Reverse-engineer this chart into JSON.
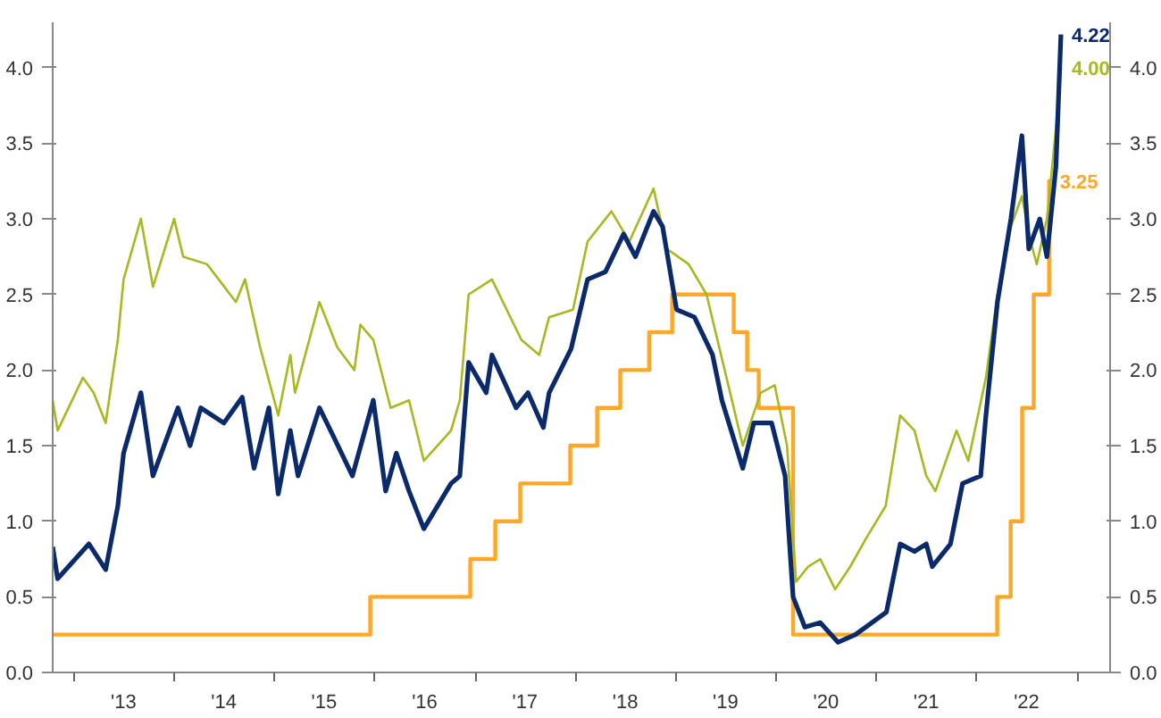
{
  "chart_data": {
    "type": "line",
    "xlim": [
      "2012-10-16",
      "2023-05-01"
    ],
    "xticks": [
      {
        "value": "2013-01-01",
        "label": null
      },
      {
        "value": "2013-07-01",
        "label": "'13"
      },
      {
        "value": "2014-01-01",
        "label": null
      },
      {
        "value": "2014-07-01",
        "label": "'14"
      },
      {
        "value": "2015-01-01",
        "label": null
      },
      {
        "value": "2015-07-01",
        "label": "'15"
      },
      {
        "value": "2016-01-01",
        "label": null
      },
      {
        "value": "2016-07-01",
        "label": "'16"
      },
      {
        "value": "2017-01-01",
        "label": null
      },
      {
        "value": "2017-07-01",
        "label": "'17"
      },
      {
        "value": "2018-01-01",
        "label": null
      },
      {
        "value": "2018-07-01",
        "label": "'18"
      },
      {
        "value": "2019-01-01",
        "label": null
      },
      {
        "value": "2019-07-01",
        "label": "'19"
      },
      {
        "value": "2020-01-01",
        "label": null
      },
      {
        "value": "2020-07-01",
        "label": "'20"
      },
      {
        "value": "2021-01-01",
        "label": null
      },
      {
        "value": "2021-07-01",
        "label": "'21"
      },
      {
        "value": "2022-01-01",
        "label": null
      },
      {
        "value": "2022-07-01",
        "label": "'22"
      },
      {
        "value": "2023-01-01",
        "label": null
      }
    ],
    "ylim": [
      0,
      4.3
    ],
    "yticks": [
      {
        "value": 0,
        "label": "0.0"
      },
      {
        "value": 0.5,
        "label": "0.5"
      },
      {
        "value": 1,
        "label": "1.0"
      },
      {
        "value": 1.5,
        "label": "1.5"
      },
      {
        "value": 2,
        "label": "2.0"
      },
      {
        "value": 2.5,
        "label": "2.5"
      },
      {
        "value": 3,
        "label": "3.0"
      },
      {
        "value": 3.5,
        "label": "3.5"
      },
      {
        "value": 4,
        "label": "4.0"
      }
    ],
    "y2lim": [
      0,
      4.3
    ],
    "y2ticks": [
      {
        "value": 0,
        "label": "0.0"
      },
      {
        "value": 0.5,
        "label": "0.5"
      },
      {
        "value": 1,
        "label": "1.0"
      },
      {
        "value": 1.5,
        "label": "1.5"
      },
      {
        "value": 2,
        "label": "2.0"
      },
      {
        "value": 2.5,
        "label": "2.5"
      },
      {
        "value": 3,
        "label": "3.0"
      },
      {
        "value": 3.5,
        "label": "3.5"
      },
      {
        "value": 4,
        "label": "4.0"
      }
    ],
    "grid": false,
    "series": [
      {
        "type": "step",
        "color": "#ffa726",
        "x": [
          "2012-10-16",
          "2015-12-16",
          "2016-12-14",
          "2017-03-15",
          "2017-06-14",
          "2017-12-13",
          "2018-03-21",
          "2018-06-13",
          "2018-09-26",
          "2018-12-19",
          "2019-07-31",
          "2019-09-18",
          "2019-10-30",
          "2020-03-03",
          "2022-03-16",
          "2022-05-04",
          "2022-06-15",
          "2022-07-27",
          "2022-09-21",
          "2022-10-01"
        ],
        "values": [
          0.25,
          0.5,
          0.75,
          1.0,
          1.25,
          1.5,
          1.75,
          2.0,
          2.25,
          2.5,
          2.25,
          2.0,
          1.75,
          0.25,
          0.5,
          1.0,
          1.75,
          2.5,
          3.25,
          3.25
        ]
      },
      {
        "color": "#a8b820",
        "x": [
          "2012-10-16",
          "2012-11-03",
          "2013-02-03",
          "2013-03-14",
          "2013-04-27",
          "2013-06-10",
          "2013-07-01",
          "2013-09-02",
          "2013-10-16",
          "2014-01-01",
          "2014-02-03",
          "2014-05-01",
          "2014-08-14",
          "2014-09-16",
          "2014-11-10",
          "2015-01-15",
          "2015-02-28",
          "2015-03-17",
          "2015-06-14",
          "2015-08-18",
          "2015-10-19",
          "2015-11-10",
          "2015-12-27",
          "2016-02-28",
          "2016-05-05",
          "2016-06-28",
          "2016-10-05",
          "2016-11-06",
          "2016-12-08",
          "2017-03-03",
          "2017-06-18",
          "2017-08-22",
          "2017-09-27",
          "2017-12-23",
          "2018-02-14",
          "2018-05-12",
          "2018-07-16",
          "2018-10-12",
          "2018-12-01",
          "2019-02-17",
          "2019-04-23",
          "2019-06-28",
          "2019-09-02",
          "2019-11-06",
          "2019-12-27",
          "2020-02-10",
          "2020-03-14",
          "2020-04-27",
          "2020-06-10",
          "2020-08-03",
          "2020-09-27",
          "2020-11-28",
          "2021-02-03",
          "2021-03-28",
          "2021-05-19",
          "2021-07-01",
          "2021-08-03",
          "2021-10-19",
          "2021-12-01",
          "2022-02-03",
          "2022-03-17",
          "2022-05-05",
          "2022-06-14",
          "2022-07-16",
          "2022-08-07",
          "2022-09-13",
          "2022-10-16",
          "2022-11-03"
        ],
        "values": [
          1.8,
          1.6,
          1.95,
          1.85,
          1.65,
          2.2,
          2.6,
          3.0,
          2.55,
          3.0,
          2.75,
          2.7,
          2.45,
          2.6,
          2.15,
          1.7,
          2.1,
          1.85,
          2.45,
          2.15,
          2.0,
          2.3,
          2.2,
          1.75,
          1.8,
          1.4,
          1.6,
          1.8,
          2.5,
          2.6,
          2.2,
          2.1,
          2.35,
          2.4,
          2.85,
          3.05,
          2.85,
          3.2,
          2.8,
          2.7,
          2.5,
          2.0,
          1.5,
          1.85,
          1.9,
          1.5,
          0.6,
          0.7,
          0.75,
          0.55,
          0.7,
          0.9,
          1.1,
          1.7,
          1.6,
          1.3,
          1.2,
          1.6,
          1.4,
          1.95,
          2.5,
          2.95,
          3.15,
          2.85,
          2.7,
          3.0,
          3.6,
          4.0
        ]
      },
      {
        "color": "#0b2a6b",
        "x": [
          "2012-10-16",
          "2012-11-03",
          "2013-02-25",
          "2013-04-27",
          "2013-06-10",
          "2013-07-01",
          "2013-09-02",
          "2013-10-16",
          "2014-01-15",
          "2014-02-28",
          "2014-04-08",
          "2014-07-01",
          "2014-09-06",
          "2014-10-19",
          "2014-12-12",
          "2015-01-15",
          "2015-02-28",
          "2015-03-28",
          "2015-06-14",
          "2015-08-07",
          "2015-10-12",
          "2015-12-27",
          "2016-02-10",
          "2016-03-20",
          "2016-05-05",
          "2016-06-28",
          "2016-10-05",
          "2016-11-06",
          "2016-12-08",
          "2017-02-10",
          "2017-03-03",
          "2017-05-30",
          "2017-07-12",
          "2017-09-06",
          "2017-09-27",
          "2017-12-16",
          "2018-02-14",
          "2018-04-20",
          "2018-06-25",
          "2018-08-07",
          "2018-10-12",
          "2018-11-14",
          "2019-01-04",
          "2019-03-10",
          "2019-05-15",
          "2019-06-18",
          "2019-09-02",
          "2019-10-12",
          "2019-12-16",
          "2020-02-03",
          "2020-03-03",
          "2020-04-15",
          "2020-06-10",
          "2020-08-14",
          "2020-10-16",
          "2021-02-06",
          "2021-03-28",
          "2021-05-19",
          "2021-07-01",
          "2021-07-23",
          "2021-09-27",
          "2021-11-10",
          "2022-01-15",
          "2022-02-03",
          "2022-03-17",
          "2022-05-05",
          "2022-06-14",
          "2022-07-09",
          "2022-08-18",
          "2022-09-13",
          "2022-10-16",
          "2022-11-03"
        ],
        "values": [
          0.83,
          0.62,
          0.85,
          0.68,
          1.1,
          1.45,
          1.85,
          1.3,
          1.75,
          1.5,
          1.75,
          1.65,
          1.82,
          1.35,
          1.75,
          1.18,
          1.6,
          1.3,
          1.75,
          1.55,
          1.3,
          1.8,
          1.2,
          1.45,
          1.2,
          0.95,
          1.25,
          1.3,
          2.05,
          1.85,
          2.1,
          1.75,
          1.85,
          1.62,
          1.85,
          2.14,
          2.6,
          2.65,
          2.9,
          2.75,
          3.05,
          2.95,
          2.4,
          2.35,
          2.1,
          1.8,
          1.35,
          1.65,
          1.65,
          1.3,
          0.5,
          0.3,
          0.33,
          0.2,
          0.25,
          0.4,
          0.85,
          0.8,
          0.85,
          0.7,
          0.85,
          1.25,
          1.3,
          1.7,
          2.45,
          3.0,
          3.55,
          2.8,
          3.0,
          2.75,
          3.35,
          4.22
        ]
      }
    ],
    "annotations": [
      {
        "text": "3.25",
        "x": "2022-09-21",
        "y": 3.25
      },
      {
        "text": "4.00",
        "x": "2022-11-03",
        "y": 4.0
      },
      {
        "text": "4.22",
        "x": "2022-11-03",
        "y": 4.22
      }
    ]
  }
}
